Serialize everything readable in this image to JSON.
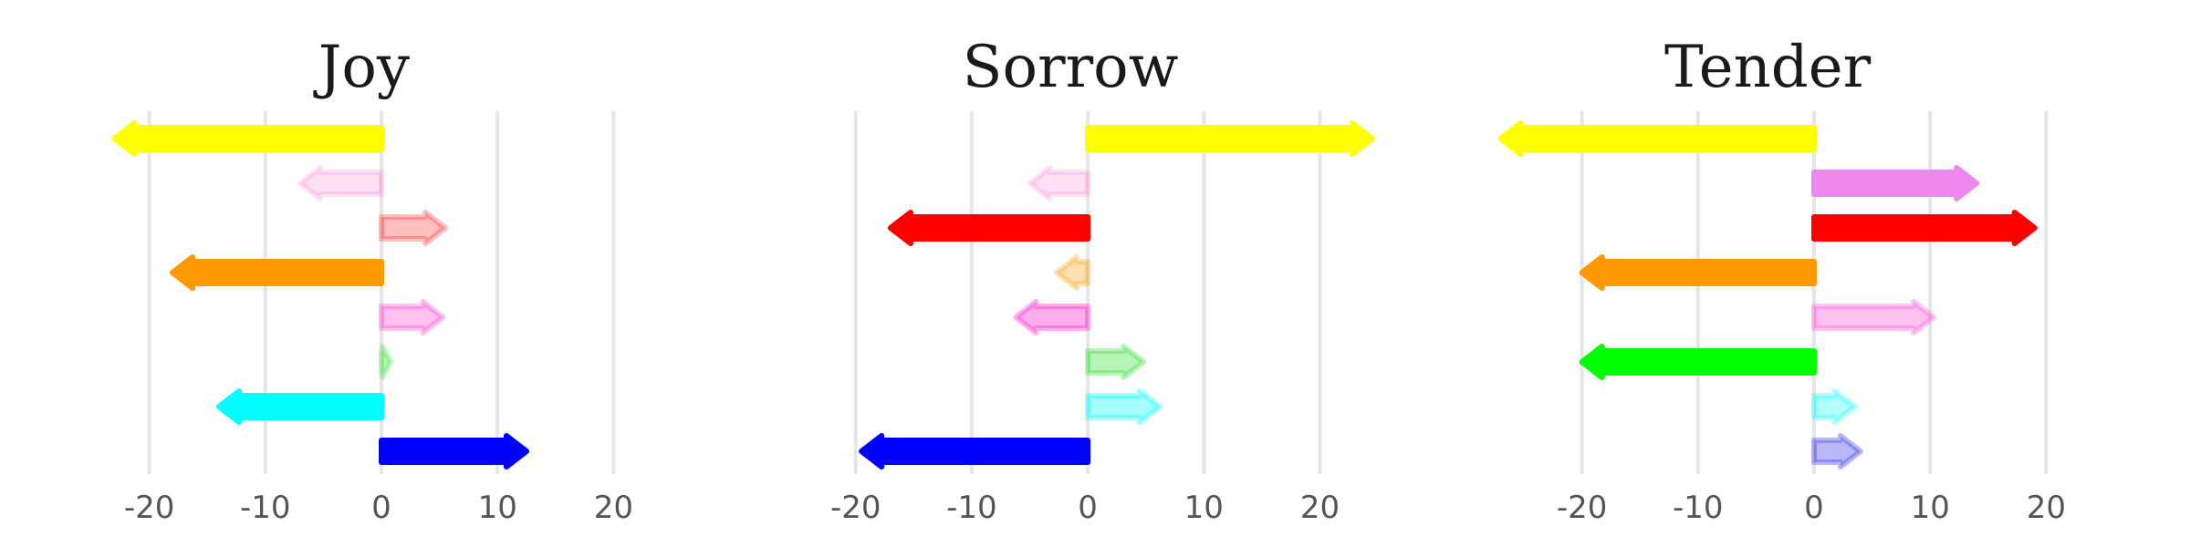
{
  "chart_data": [
    {
      "type": "bar",
      "title": "Joy",
      "xlim": [
        -25,
        25
      ],
      "ticks": [
        -20,
        -10,
        0,
        10,
        20
      ],
      "tick_labels": [
        "-20",
        "-10",
        "0",
        "10",
        "20"
      ],
      "grid": true,
      "bars": [
        {
          "value": -23,
          "color": "#ffff00",
          "opacity": 1.0
        },
        {
          "value": -7,
          "color": "#ff66cc",
          "opacity": 0.2
        },
        {
          "value": 5.5,
          "color": "#ff0000",
          "opacity": 0.25
        },
        {
          "value": -18,
          "color": "#ff9900",
          "opacity": 1.0
        },
        {
          "value": 5.3,
          "color": "#ff33cc",
          "opacity": 0.3
        },
        {
          "value": 0.8,
          "color": "#33dd33",
          "opacity": 0.3
        },
        {
          "value": -14,
          "color": "#00ffff",
          "opacity": 1.0
        },
        {
          "value": 12.5,
          "color": "#0000ff",
          "opacity": 1.0
        }
      ]
    },
    {
      "type": "bar",
      "title": "Sorrow",
      "xlim": [
        -21,
        29
      ],
      "ticks": [
        -20,
        -10,
        0,
        10,
        20
      ],
      "tick_labels": [
        "-20",
        "-10",
        "0",
        "10",
        "20"
      ],
      "grid": true,
      "bars": [
        {
          "value": 24.5,
          "color": "#ffff00",
          "opacity": 1.0
        },
        {
          "value": -5,
          "color": "#ff66cc",
          "opacity": 0.2
        },
        {
          "value": -17,
          "color": "#ff0000",
          "opacity": 1.0
        },
        {
          "value": -2.7,
          "color": "#ff9900",
          "opacity": 0.3
        },
        {
          "value": -6.2,
          "color": "#ff33cc",
          "opacity": 0.4
        },
        {
          "value": 4.8,
          "color": "#33dd33",
          "opacity": 0.35
        },
        {
          "value": 6.2,
          "color": "#00ffff",
          "opacity": 0.35
        },
        {
          "value": -19.5,
          "color": "#0000ff",
          "opacity": 1.0
        }
      ]
    },
    {
      "type": "bar",
      "title": "Tender",
      "xlim": [
        -25,
        25
      ],
      "ticks": [
        -20,
        -10,
        0,
        10,
        20
      ],
      "tick_labels": [
        "-20",
        "-10",
        "0",
        "10",
        "20"
      ],
      "grid": true,
      "bars": [
        {
          "value": -27,
          "color": "#ffff00",
          "opacity": 1.0
        },
        {
          "value": 14,
          "color": "#ee88ee",
          "opacity": 1.0
        },
        {
          "value": 19,
          "color": "#ff0000",
          "opacity": 1.0
        },
        {
          "value": -20,
          "color": "#ff9900",
          "opacity": 1.0
        },
        {
          "value": 10.3,
          "color": "#ff66dd",
          "opacity": 0.4
        },
        {
          "value": -20,
          "color": "#00ff00",
          "opacity": 1.0
        },
        {
          "value": 3.5,
          "color": "#00ffff",
          "opacity": 0.3
        },
        {
          "value": 4,
          "color": "#3333ee",
          "opacity": 0.35
        }
      ]
    }
  ]
}
